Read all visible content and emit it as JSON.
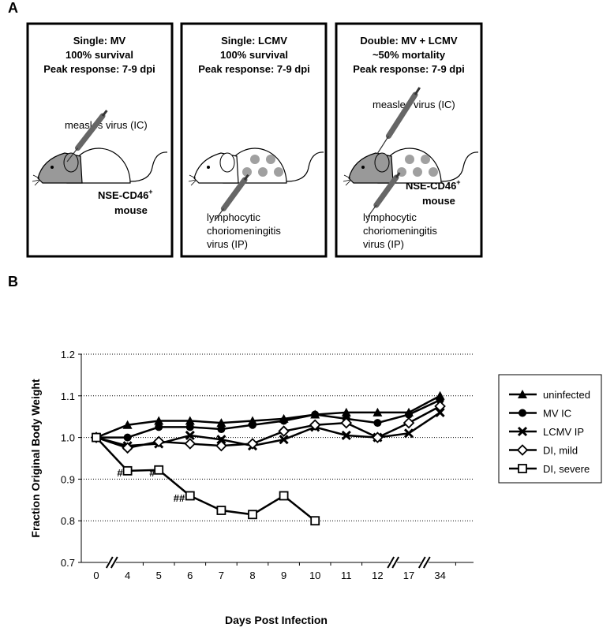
{
  "panel_a": {
    "label": "A",
    "boxes": [
      {
        "title": [
          "Single: MV",
          "100% survival",
          "Peak response: 7-9 dpi"
        ],
        "injection_top": "measles virus (IC)",
        "mouse_label": "NSE-CD46",
        "mouse_label_sup": "+",
        "mouse_word": "mouse"
      },
      {
        "title": [
          "Single: LCMV",
          "100% survival",
          "Peak response: 7-9 dpi"
        ],
        "injection_bottom": [
          "lymphocytic",
          "choriomeningitis",
          "virus (IP)"
        ]
      },
      {
        "title": [
          "Double: MV + LCMV",
          "~50% mortality",
          "Peak response:  7-9 dpi"
        ],
        "injection_top": "measles virus (IC)",
        "mouse_label": "NSE-CD46",
        "mouse_label_sup": "+",
        "mouse_word": "mouse",
        "injection_bottom": [
          "lymphocytic",
          "choriomeningitis",
          "virus (IP)"
        ]
      }
    ]
  },
  "chart_data": {
    "type": "line",
    "panel_label": "B",
    "x_label": "Days Post Infection",
    "y_label": "Fraction Original Body Weight",
    "categories": [
      "0",
      "4",
      "5",
      "6",
      "7",
      "8",
      "9",
      "10",
      "11",
      "12",
      "17",
      "34"
    ],
    "ylim": [
      0.7,
      1.2
    ],
    "yticks": [
      0.7,
      0.8,
      0.9,
      {
        "value": 1,
        "label": "1.0"
      },
      1.1,
      1.2
    ],
    "grid": true,
    "legend": "right",
    "annotations": [
      "#",
      "#",
      "##"
    ],
    "series": [
      {
        "name": "uninfected",
        "color": "#000000",
        "marker": "triangle",
        "values": [
          1.0,
          1.03,
          1.04,
          1.04,
          1.035,
          1.04,
          1.045,
          1.055,
          1.06,
          1.06,
          1.06,
          1.1
        ]
      },
      {
        "name": "MV IC",
        "color": "#000000",
        "marker": "circle",
        "values": [
          1.0,
          1.0,
          1.025,
          1.025,
          1.02,
          1.03,
          1.04,
          1.055,
          1.045,
          1.035,
          1.055,
          1.09
        ]
      },
      {
        "name": "LCMV IP",
        "color": "#000000",
        "marker": "x",
        "values": [
          1.0,
          0.98,
          0.985,
          1.005,
          0.995,
          0.98,
          0.995,
          1.025,
          1.005,
          1.0,
          1.01,
          1.06
        ]
      },
      {
        "name": "DI, mild",
        "color": "#000000",
        "marker": "diamond",
        "values": [
          1.0,
          0.975,
          0.99,
          0.985,
          0.98,
          0.985,
          1.015,
          1.03,
          1.035,
          1.0,
          1.035,
          1.075
        ]
      },
      {
        "name": "DI, severe",
        "color": "#000000",
        "marker": "square",
        "values": [
          1.0,
          0.92,
          0.922,
          0.86,
          0.825,
          0.815,
          0.86,
          0.8,
          null,
          null,
          null,
          null
        ]
      }
    ]
  }
}
